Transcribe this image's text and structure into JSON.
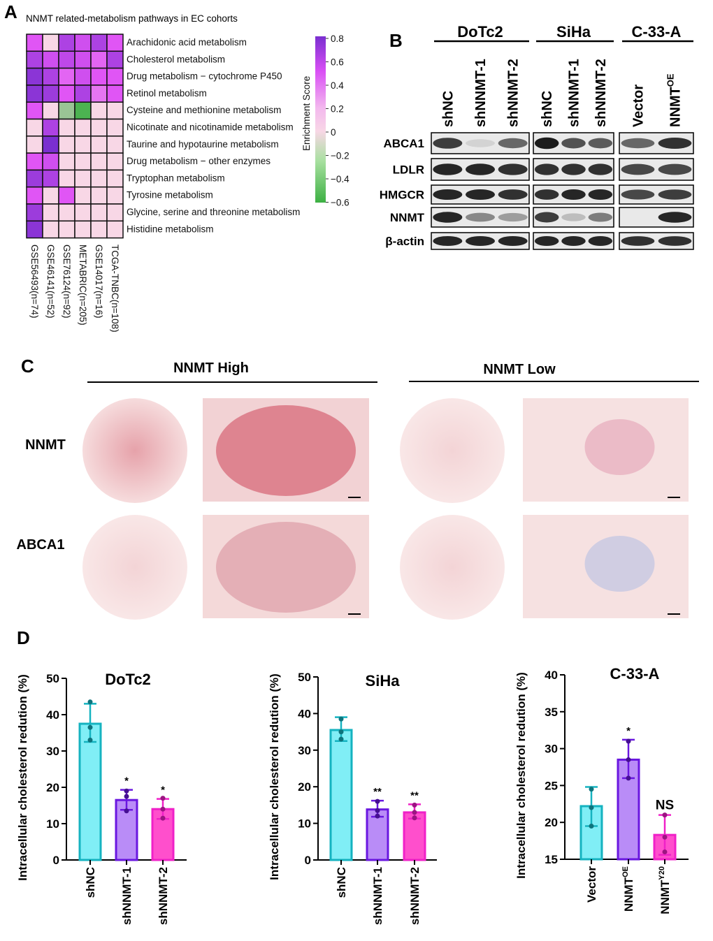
{
  "panels": {
    "a": "A",
    "b": "B",
    "c": "C",
    "d": "D"
  },
  "chart_data": [
    {
      "type": "heatmap",
      "title": "NNMT related-metabolism pathways in EC cohorts",
      "rows": [
        "Arachidonic acid metabolism",
        "Cholesterol metabolism",
        "Drug metabolism − cytochrome P450",
        "Retinol metabolism",
        "Cysteine and methionine metabolism",
        "Nicotinate and nicotinamide metabolism",
        "Taurine and hypotaurine metabolism",
        "Drug metabolism − other enzymes",
        "Tryptophan metabolism",
        "Tyrosine metabolism",
        "Glycine, serine and threonine metabolism",
        "Histidine metabolism"
      ],
      "columns": [
        "GSE56493(n=74)",
        "GSE46141(n=52)",
        "GSE76124(n=92)",
        "METABRIC(n=205)",
        "GSE14017(n=16)",
        "TCGA-TNBC(n=108)"
      ],
      "values": [
        [
          0.5,
          0,
          0.65,
          0.55,
          0.65,
          0.5
        ],
        [
          0.65,
          0.55,
          0.6,
          0.55,
          0.45,
          0.65
        ],
        [
          0.75,
          0.65,
          0.45,
          0.55,
          0.5,
          0.5
        ],
        [
          0.75,
          0.7,
          0.5,
          0.65,
          0.4,
          0.5
        ],
        [
          0.5,
          0,
          -0.3,
          -0.55,
          0,
          0
        ],
        [
          0,
          0.65,
          0,
          0,
          0,
          0
        ],
        [
          0,
          0.8,
          0,
          0,
          0,
          0
        ],
        [
          0.5,
          0.55,
          0,
          0,
          0,
          0
        ],
        [
          0.7,
          0.65,
          0,
          0,
          0,
          0
        ],
        [
          0.5,
          0,
          0.5,
          0,
          0,
          0
        ],
        [
          0.7,
          0,
          0,
          0,
          0,
          0
        ],
        [
          0.75,
          0,
          0,
          0,
          0,
          0
        ]
      ],
      "colorbar": {
        "label": "Enrichment Score",
        "ticks": [
          "0.8",
          "0.6",
          "0.4",
          "0.2",
          "0",
          "−0.2",
          "−0.4",
          "−0.6"
        ],
        "range": [
          -0.6,
          0.8
        ]
      }
    },
    {
      "type": "bar",
      "title": "DoTc2",
      "ylabel": "Intracellular cholesterol redution (%)",
      "ylim": [
        0,
        50
      ],
      "yticks": [
        "0",
        "10",
        "20",
        "30",
        "40",
        "50"
      ],
      "categories": [
        "shNC",
        "shNNMT-1",
        "shNNMT-2"
      ],
      "values": [
        37.5,
        16.5,
        14
      ],
      "points": [
        [
          43.5,
          36.5,
          33
        ],
        [
          19,
          17.5,
          13.5
        ],
        [
          17,
          14,
          11.5
        ]
      ],
      "errors": [
        [
          32.5,
          43
        ],
        [
          13.8,
          19.3
        ],
        [
          11.3,
          16.8
        ]
      ],
      "significance": [
        "",
        "*",
        "*"
      ],
      "colors": [
        "#15b3c0",
        "#6a17e0",
        "#f021c8"
      ],
      "fills": [
        "#80eef6",
        "#b98cf7",
        "#ff4fcc"
      ]
    },
    {
      "type": "bar",
      "title": "SiHa",
      "ylabel": "Intracellular cholesterol redution (%)",
      "ylim": [
        0,
        50
      ],
      "yticks": [
        "0",
        "10",
        "20",
        "30",
        "40",
        "50"
      ],
      "categories": [
        "shNC",
        "shNNMT-1",
        "shNNMT-2"
      ],
      "values": [
        35.5,
        13.8,
        13
      ],
      "points": [
        [
          38.5,
          35,
          33
        ],
        [
          16,
          13.5,
          12
        ],
        [
          15,
          13,
          11.5
        ]
      ],
      "errors": [
        [
          32.5,
          39
        ],
        [
          11.8,
          16.2
        ],
        [
          11.3,
          15.2
        ]
      ],
      "significance": [
        "",
        "**",
        "**"
      ],
      "colors": [
        "#15b3c0",
        "#6a17e0",
        "#f021c8"
      ],
      "fills": [
        "#80eef6",
        "#b98cf7",
        "#ff4fcc"
      ]
    },
    {
      "type": "bar",
      "title": "C-33-A",
      "ylabel": "Intracellular cholesterol redution (%)",
      "ylim": [
        15,
        40
      ],
      "yticks": [
        "15",
        "20",
        "25",
        "30",
        "35",
        "40"
      ],
      "categories": [
        "Vector",
        "NNMT",
        "NNMT"
      ],
      "cat_sup": [
        "",
        "OE",
        "Y20"
      ],
      "values": [
        22.2,
        28.5,
        18.3
      ],
      "points": [
        [
          24.5,
          22,
          19.5
        ],
        [
          31,
          28.5,
          26
        ],
        [
          21,
          18,
          16
        ]
      ],
      "errors": [
        [
          19.5,
          24.8
        ],
        [
          26,
          31.2
        ],
        [
          15.6,
          21
        ]
      ],
      "significance": [
        "",
        "*",
        "NS"
      ],
      "colors": [
        "#15b3c0",
        "#6a17e0",
        "#f021c8"
      ],
      "fills": [
        "#80eef6",
        "#b98cf7",
        "#ff4fcc"
      ]
    }
  ],
  "blot": {
    "groups": [
      "DoTc2",
      "SiHa",
      "C-33-A"
    ],
    "lanes": [
      [
        "shNC",
        "shNNMT-1",
        "shNNMT-2"
      ],
      [
        "shNC",
        "shNNMT-1",
        "shNNMT-2"
      ],
      [
        "Vector",
        "NNMT"
      ]
    ],
    "oe_sup": "OE",
    "proteins": [
      "ABCA1",
      "LDLR",
      "HMGCR",
      "NNMT",
      "β-actin"
    ],
    "intensity": [
      [
        [
          0.8,
          0.1,
          0.6
        ],
        [
          0.95,
          0.7,
          0.65
        ],
        [
          0.6,
          0.85
        ]
      ],
      [
        [
          0.9,
          0.9,
          0.85
        ],
        [
          0.85,
          0.85,
          0.85
        ],
        [
          0.75,
          0.75
        ]
      ],
      [
        [
          0.9,
          0.9,
          0.85
        ],
        [
          0.85,
          0.9,
          0.9
        ],
        [
          0.75,
          0.8
        ]
      ],
      [
        [
          0.9,
          0.45,
          0.35
        ],
        [
          0.8,
          0.2,
          0.5
        ],
        [
          0,
          0.9
        ]
      ],
      [
        [
          0.9,
          0.9,
          0.9
        ],
        [
          0.9,
          0.9,
          0.9
        ],
        [
          0.85,
          0.85
        ]
      ]
    ]
  },
  "ihc": {
    "high": "NNMT High",
    "low": "NNMT Low",
    "rows": [
      "NNMT",
      "ABCA1"
    ]
  }
}
